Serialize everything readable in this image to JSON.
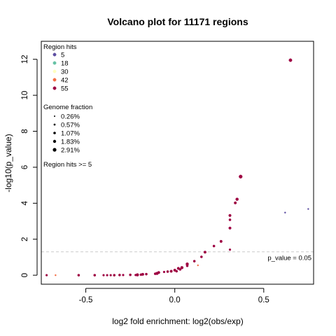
{
  "chart_data": {
    "type": "scatter",
    "title": "Volcano plot for 11171 regions",
    "xlabel": "log2 fold enrichment: log2(obs/exp)",
    "ylabel": "-log10(p_value)",
    "xlim": [
      -0.75,
      0.78
    ],
    "ylim": [
      -0.5,
      13
    ],
    "xticks": [
      -0.5,
      0.0,
      0.5
    ],
    "xtick_labels": [
      "-0.5",
      "0.0",
      "0.5"
    ],
    "yticks": [
      0,
      2,
      4,
      6,
      8,
      10,
      12
    ],
    "ytick_labels": [
      "0",
      "2",
      "4",
      "6",
      "8",
      "10",
      "12"
    ],
    "threshold": {
      "y": 1.301,
      "label": "p_value = 0.05",
      "style": "dashed",
      "color": "#cccccc"
    },
    "legend_hits": {
      "title": "Region hits",
      "items": [
        {
          "label": "5",
          "color": "#5e4fa2"
        },
        {
          "label": "18",
          "color": "#66c2a5"
        },
        {
          "label": "30",
          "color": "#ffffbf"
        },
        {
          "label": "42",
          "color": "#f46d43"
        },
        {
          "label": "55",
          "color": "#9e0142"
        }
      ]
    },
    "legend_fraction": {
      "title": "Genome fraction",
      "items": [
        {
          "label": "0.26%",
          "size": 1
        },
        {
          "label": "0.57%",
          "size": 1.4
        },
        {
          "label": "1.07%",
          "size": 1.8
        },
        {
          "label": "1.83%",
          "size": 2.2
        },
        {
          "label": "2.91%",
          "size": 2.6
        }
      ]
    },
    "note": "Region hits >= 5",
    "points": [
      {
        "x": 0.65,
        "y": 11.95,
        "c": "#9e0142",
        "s": 2.2
      },
      {
        "x": 0.37,
        "y": 5.48,
        "c": "#9e0142",
        "s": 2.4
      },
      {
        "x": 0.35,
        "y": 4.22,
        "c": "#9e0142",
        "s": 2.0
      },
      {
        "x": 0.34,
        "y": 4.02,
        "c": "#9e0142",
        "s": 1.8
      },
      {
        "x": 0.75,
        "y": 3.68,
        "c": "#5e4fa2",
        "s": 1.0
      },
      {
        "x": 0.62,
        "y": 3.48,
        "c": "#5e4fa2",
        "s": 1.0
      },
      {
        "x": 0.31,
        "y": 3.32,
        "c": "#9e0142",
        "s": 1.8
      },
      {
        "x": 0.31,
        "y": 3.08,
        "c": "#9e0142",
        "s": 1.6
      },
      {
        "x": 0.31,
        "y": 2.62,
        "c": "#9e0142",
        "s": 1.8
      },
      {
        "x": 0.26,
        "y": 1.88,
        "c": "#9e0142",
        "s": 1.8
      },
      {
        "x": 0.22,
        "y": 1.62,
        "c": "#9e0142",
        "s": 1.6
      },
      {
        "x": 0.31,
        "y": 1.42,
        "c": "#9e0142",
        "s": 1.4
      },
      {
        "x": 0.17,
        "y": 1.28,
        "c": "#9e0142",
        "s": 1.8
      },
      {
        "x": 0.15,
        "y": 1.02,
        "c": "#9e0142",
        "s": 1.6
      },
      {
        "x": 0.11,
        "y": 0.78,
        "c": "#9e0142",
        "s": 1.6
      },
      {
        "x": 0.07,
        "y": 0.62,
        "c": "#9e0142",
        "s": 2.0
      },
      {
        "x": 0.07,
        "y": 0.52,
        "c": "#9e0142",
        "s": 1.6
      },
      {
        "x": 0.13,
        "y": 0.55,
        "c": "#f46d43",
        "s": 1.0
      },
      {
        "x": 0.04,
        "y": 0.42,
        "c": "#9e0142",
        "s": 2.0
      },
      {
        "x": 0.02,
        "y": 0.38,
        "c": "#9e0142",
        "s": 1.8
      },
      {
        "x": 0.03,
        "y": 0.32,
        "c": "#9e0142",
        "s": 1.6
      },
      {
        "x": 0.0,
        "y": 0.28,
        "c": "#9e0142",
        "s": 1.8
      },
      {
        "x": 0.01,
        "y": 0.22,
        "c": "#9e0142",
        "s": 1.6
      },
      {
        "x": -0.02,
        "y": 0.22,
        "c": "#9e0142",
        "s": 1.8
      },
      {
        "x": -0.04,
        "y": 0.2,
        "c": "#9e0142",
        "s": 1.6
      },
      {
        "x": -0.06,
        "y": 0.18,
        "c": "#9e0142",
        "s": 1.4
      },
      {
        "x": -0.09,
        "y": 0.15,
        "c": "#9e0142",
        "s": 1.8
      },
      {
        "x": -0.1,
        "y": 0.1,
        "c": "#9e0142",
        "s": 2.0
      },
      {
        "x": -0.11,
        "y": 0.08,
        "c": "#9e0142",
        "s": 1.6
      },
      {
        "x": -0.16,
        "y": 0.06,
        "c": "#9e0142",
        "s": 1.6
      },
      {
        "x": -0.18,
        "y": 0.05,
        "c": "#9e0142",
        "s": 1.8
      },
      {
        "x": -0.19,
        "y": 0.03,
        "c": "#9e0142",
        "s": 1.6
      },
      {
        "x": -0.21,
        "y": 0.02,
        "c": "#9e0142",
        "s": 2.0
      },
      {
        "x": -0.22,
        "y": 0.01,
        "c": "#9e0142",
        "s": 1.4
      },
      {
        "x": -0.25,
        "y": 0.02,
        "c": "#9e0142",
        "s": 1.6
      },
      {
        "x": -0.29,
        "y": 0.01,
        "c": "#9e0142",
        "s": 1.4
      },
      {
        "x": -0.31,
        "y": 0.01,
        "c": "#9e0142",
        "s": 1.6
      },
      {
        "x": -0.34,
        "y": 0.0,
        "c": "#9e0142",
        "s": 1.6
      },
      {
        "x": -0.36,
        "y": 0.0,
        "c": "#9e0142",
        "s": 1.4
      },
      {
        "x": -0.38,
        "y": 0.0,
        "c": "#9e0142",
        "s": 1.4
      },
      {
        "x": -0.4,
        "y": 0.0,
        "c": "#9e0142",
        "s": 1.4
      },
      {
        "x": -0.45,
        "y": 0.0,
        "c": "#9e0142",
        "s": 1.6
      },
      {
        "x": -0.54,
        "y": 0.0,
        "c": "#9e0142",
        "s": 1.6
      },
      {
        "x": -0.67,
        "y": 0.0,
        "c": "#f46d43",
        "s": 1.0
      },
      {
        "x": -0.72,
        "y": 0.0,
        "c": "#9e0142",
        "s": 1.4
      }
    ]
  }
}
